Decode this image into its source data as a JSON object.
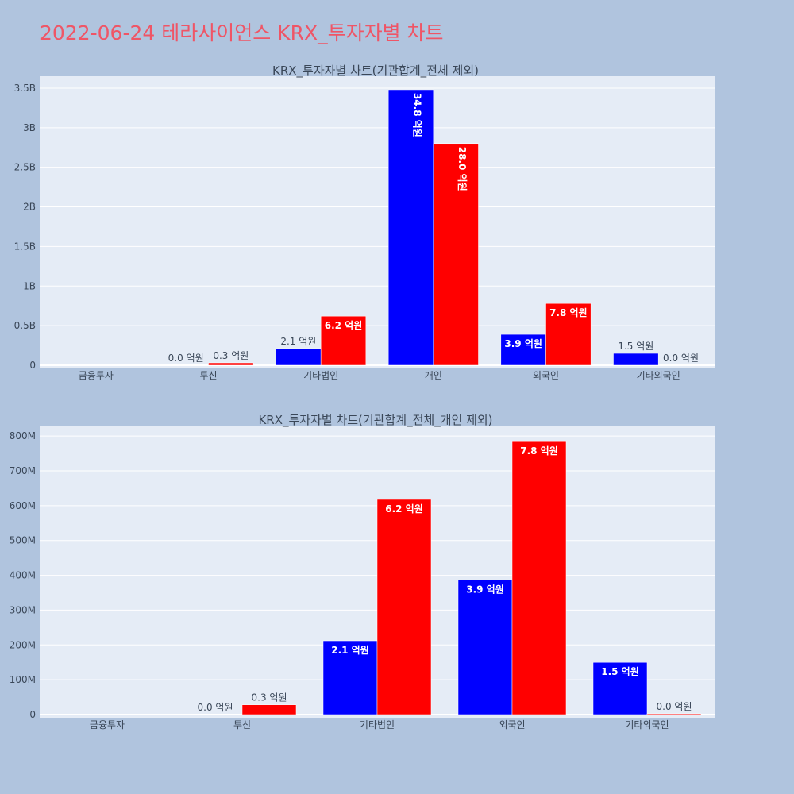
{
  "page": {
    "title": "2022-06-24 테라사이언스 KRX_투자자별 차트",
    "colors": {
      "background": "#b0c4de",
      "plot_bg": "#e5ecf6",
      "series_a": "#0000ff",
      "series_b": "#ff0000",
      "title": "#ef5566"
    }
  },
  "chart_data": [
    {
      "type": "bar",
      "title": "KRX_투자자별 차트(기관합계_전체 제외)",
      "categories": [
        "금융투자",
        "투신",
        "기타법인",
        "개인",
        "외국인",
        "기타외국인"
      ],
      "ylim": [
        0,
        3.65
      ],
      "y_unit": "B",
      "yticks": [
        0,
        0.5,
        1,
        1.5,
        2,
        2.5,
        3,
        3.5
      ],
      "ytick_labels": [
        "0",
        "0.5B",
        "1B",
        "1.5B",
        "2B",
        "2.5B",
        "3B",
        "3.5B"
      ],
      "grid": true,
      "series": [
        {
          "color": "#0000ff",
          "values": [
            null,
            0.0,
            0.21,
            3.48,
            0.39,
            0.15
          ],
          "labels": [
            null,
            "0.0 억원",
            "2.1 억원",
            "34.8 억원",
            "3.9 억원",
            "1.5 억원"
          ],
          "label_pos": [
            null,
            "out",
            "out",
            "in-rot",
            "in",
            "out"
          ]
        },
        {
          "color": "#ff0000",
          "values": [
            null,
            0.03,
            0.62,
            2.8,
            0.78,
            0.0
          ],
          "labels": [
            null,
            "0.3 억원",
            "6.2 억원",
            "28.0 억원",
            "7.8 억원",
            "0.0 억원"
          ],
          "label_pos": [
            null,
            "out",
            "in",
            "in-rot",
            "in",
            "out"
          ]
        }
      ]
    },
    {
      "type": "bar",
      "title": "KRX_투자자별 차트(기관합계_전체_개인 제외)",
      "categories": [
        "금융투자",
        "투신",
        "기타법인",
        "외국인",
        "기타외국인"
      ],
      "ylim": [
        0,
        830
      ],
      "y_unit": "M",
      "yticks": [
        0,
        100,
        200,
        300,
        400,
        500,
        600,
        700,
        800
      ],
      "ytick_labels": [
        "0",
        "100M",
        "200M",
        "300M",
        "400M",
        "500M",
        "600M",
        "700M",
        "800M"
      ],
      "grid": true,
      "series": [
        {
          "color": "#0000ff",
          "values": [
            null,
            0.0,
            212,
            386,
            150
          ],
          "labels": [
            null,
            "0.0 억원",
            "2.1 억원",
            "3.9 억원",
            "1.5 억원"
          ],
          "label_pos": [
            null,
            "out",
            "in",
            "in",
            "in"
          ]
        },
        {
          "color": "#ff0000",
          "values": [
            null,
            28,
            618,
            784,
            1
          ],
          "labels": [
            null,
            "0.3 억원",
            "6.2 억원",
            "7.8 억원",
            "0.0 억원"
          ],
          "label_pos": [
            null,
            "out",
            "in",
            "in",
            "out"
          ]
        }
      ]
    }
  ]
}
